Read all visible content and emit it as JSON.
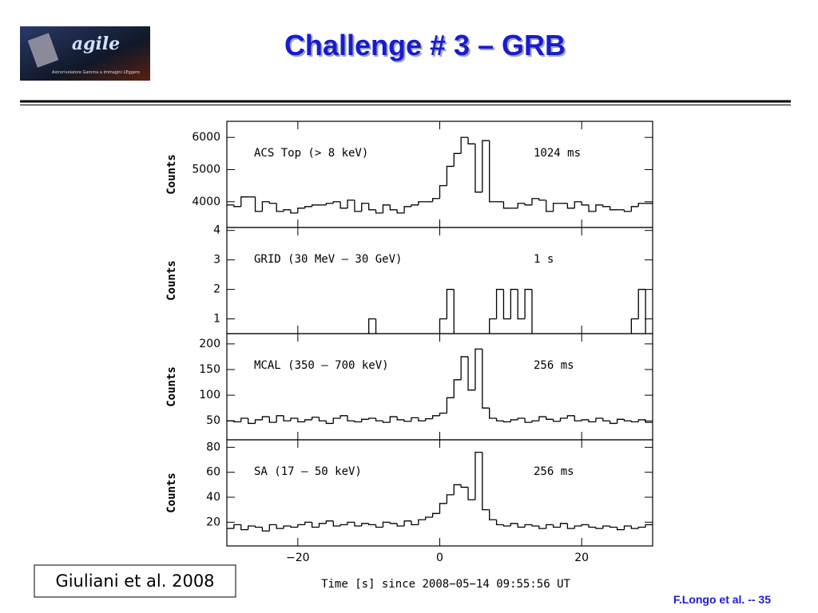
{
  "header": {
    "title": "Challenge  # 3 – GRB",
    "logo_text": "agile",
    "logo_subtext": "Astrorivelatore Gamma a Immagini LEggero"
  },
  "chart_data": [
    {
      "type": "histogram",
      "label": "ACS Top (> 8 keV)",
      "resolution": "1024 ms",
      "y_label": "Counts",
      "color": "#000000",
      "xlim": [
        -30,
        30
      ],
      "ylim": [
        3200,
        6500
      ],
      "yticks": [
        4000,
        5000,
        6000
      ],
      "bins": [
        -30,
        -29,
        -28,
        -27,
        -26,
        -25,
        -24,
        -23,
        -22,
        -21,
        -20,
        -19,
        -18,
        -17,
        -16,
        -15,
        -14,
        -13,
        -12,
        -11,
        -10,
        -9,
        -8,
        -7,
        -6,
        -5,
        -4,
        -3,
        -2,
        -1,
        0,
        1,
        2,
        3,
        4,
        5,
        6,
        7,
        8,
        9,
        10,
        11,
        12,
        13,
        14,
        15,
        16,
        17,
        18,
        19,
        20,
        21,
        22,
        23,
        24,
        25,
        26,
        27,
        28,
        29,
        30
      ],
      "values": [
        3900,
        3850,
        4150,
        4150,
        3700,
        4000,
        3950,
        3700,
        3750,
        3650,
        3800,
        3850,
        3900,
        3900,
        3950,
        4000,
        3800,
        4050,
        3700,
        3950,
        3750,
        3650,
        3900,
        3750,
        3650,
        3850,
        3900,
        4000,
        4000,
        4100,
        4500,
        5100,
        5500,
        6000,
        5800,
        4300,
        5900,
        4000,
        4000,
        3800,
        3800,
        3950,
        3900,
        4100,
        4050,
        3700,
        3950,
        3950,
        3800,
        4000,
        3900,
        3700,
        3900,
        3850,
        3750,
        3750,
        3700,
        3850,
        3950,
        3950
      ]
    },
    {
      "type": "histogram",
      "label": "GRID (30 MeV – 30 GeV)",
      "resolution": "1 s",
      "y_label": "Counts",
      "color": "#000000",
      "xlim": [
        -30,
        30
      ],
      "ylim": [
        0.5,
        4.1
      ],
      "yticks": [
        1,
        2,
        3,
        4
      ],
      "bins": [
        -30,
        -29,
        -28,
        -27,
        -26,
        -25,
        -24,
        -23,
        -22,
        -21,
        -20,
        -19,
        -18,
        -17,
        -16,
        -15,
        -14,
        -13,
        -12,
        -11,
        -10,
        -9,
        -8,
        -7,
        -6,
        -5,
        -4,
        -3,
        -2,
        -1,
        0,
        1,
        2,
        3,
        4,
        5,
        6,
        7,
        8,
        9,
        10,
        11,
        12,
        13,
        14,
        15,
        16,
        17,
        18,
        19,
        20,
        21,
        22,
        23,
        24,
        25,
        26,
        27,
        28,
        29,
        30
      ],
      "values": [
        0,
        0,
        0,
        0,
        0,
        0,
        0,
        0,
        0,
        0,
        0,
        0,
        0,
        0,
        0,
        0,
        0,
        0,
        0,
        0,
        1,
        0,
        0,
        0,
        0,
        0,
        0,
        0,
        0,
        0,
        1,
        2,
        0,
        0,
        0,
        0,
        0,
        1,
        2,
        1,
        2,
        1,
        2,
        0,
        0,
        0,
        0,
        0,
        0,
        0,
        0,
        0,
        0,
        0,
        0,
        0,
        0,
        1,
        2,
        0
      ]
    },
    {
      "type": "histogram",
      "label": "MCAL (350 – 700 keV)",
      "resolution": "256 ms",
      "y_label": "Counts",
      "color": "#000000",
      "xlim": [
        -30,
        30
      ],
      "ylim": [
        13,
        220
      ],
      "yticks": [
        50,
        100,
        150,
        200
      ],
      "bins": [
        -30,
        -29,
        -28,
        -27,
        -26,
        -25,
        -24,
        -23,
        -22,
        -21,
        -20,
        -19,
        -18,
        -17,
        -16,
        -15,
        -14,
        -13,
        -12,
        -11,
        -10,
        -9,
        -8,
        -7,
        -6,
        -5,
        -4,
        -3,
        -2,
        -1,
        0,
        1,
        2,
        3,
        4,
        5,
        6,
        7,
        8,
        9,
        10,
        11,
        12,
        13,
        14,
        15,
        16,
        17,
        18,
        19,
        20,
        21,
        22,
        23,
        24,
        25,
        26,
        27,
        28,
        29,
        30
      ],
      "values": [
        50,
        48,
        55,
        45,
        52,
        58,
        47,
        60,
        50,
        55,
        48,
        52,
        57,
        50,
        45,
        55,
        60,
        50,
        48,
        53,
        55,
        50,
        47,
        58,
        52,
        49,
        56,
        50,
        54,
        60,
        65,
        95,
        130,
        175,
        110,
        190,
        75,
        55,
        50,
        48,
        52,
        55,
        47,
        50,
        58,
        53,
        49,
        55,
        60,
        50,
        52,
        48,
        55,
        50,
        45,
        53,
        50,
        48,
        52,
        47
      ]
    },
    {
      "type": "histogram",
      "label": "SA (17 – 50 keV)",
      "resolution": "256 ms",
      "y_label": "Counts",
      "color": "#000000",
      "xlim": [
        -30,
        30
      ],
      "ylim": [
        1,
        86
      ],
      "yticks": [
        20,
        40,
        60,
        80
      ],
      "xticks": [
        {
          "value": -20,
          "label": "−20"
        },
        0,
        20
      ],
      "x_label": "Time [s] since 2008−05−14 09:55:56 UT",
      "bins": [
        -30,
        -29,
        -28,
        -27,
        -26,
        -25,
        -24,
        -23,
        -22,
        -21,
        -20,
        -19,
        -18,
        -17,
        -16,
        -15,
        -14,
        -13,
        -12,
        -11,
        -10,
        -9,
        -8,
        -7,
        -6,
        -5,
        -4,
        -3,
        -2,
        -1,
        0,
        1,
        2,
        3,
        4,
        5,
        6,
        7,
        8,
        9,
        10,
        11,
        12,
        13,
        14,
        15,
        16,
        17,
        18,
        19,
        20,
        21,
        22,
        23,
        24,
        25,
        26,
        27,
        28,
        29,
        30
      ],
      "values": [
        15,
        18,
        14,
        17,
        16,
        13,
        18,
        15,
        17,
        16,
        18,
        20,
        16,
        19,
        21,
        17,
        18,
        20,
        17,
        19,
        18,
        16,
        20,
        19,
        17,
        21,
        18,
        22,
        24,
        27,
        35,
        42,
        50,
        48,
        38,
        76,
        30,
        22,
        18,
        17,
        19,
        16,
        18,
        17,
        15,
        18,
        16,
        19,
        15,
        17,
        18,
        16,
        15,
        17,
        16,
        14,
        17,
        15,
        16,
        18
      ]
    }
  ],
  "footer": {
    "citation": "Giuliani et al. 2008",
    "page": "F.Longo et al. -- 35"
  }
}
